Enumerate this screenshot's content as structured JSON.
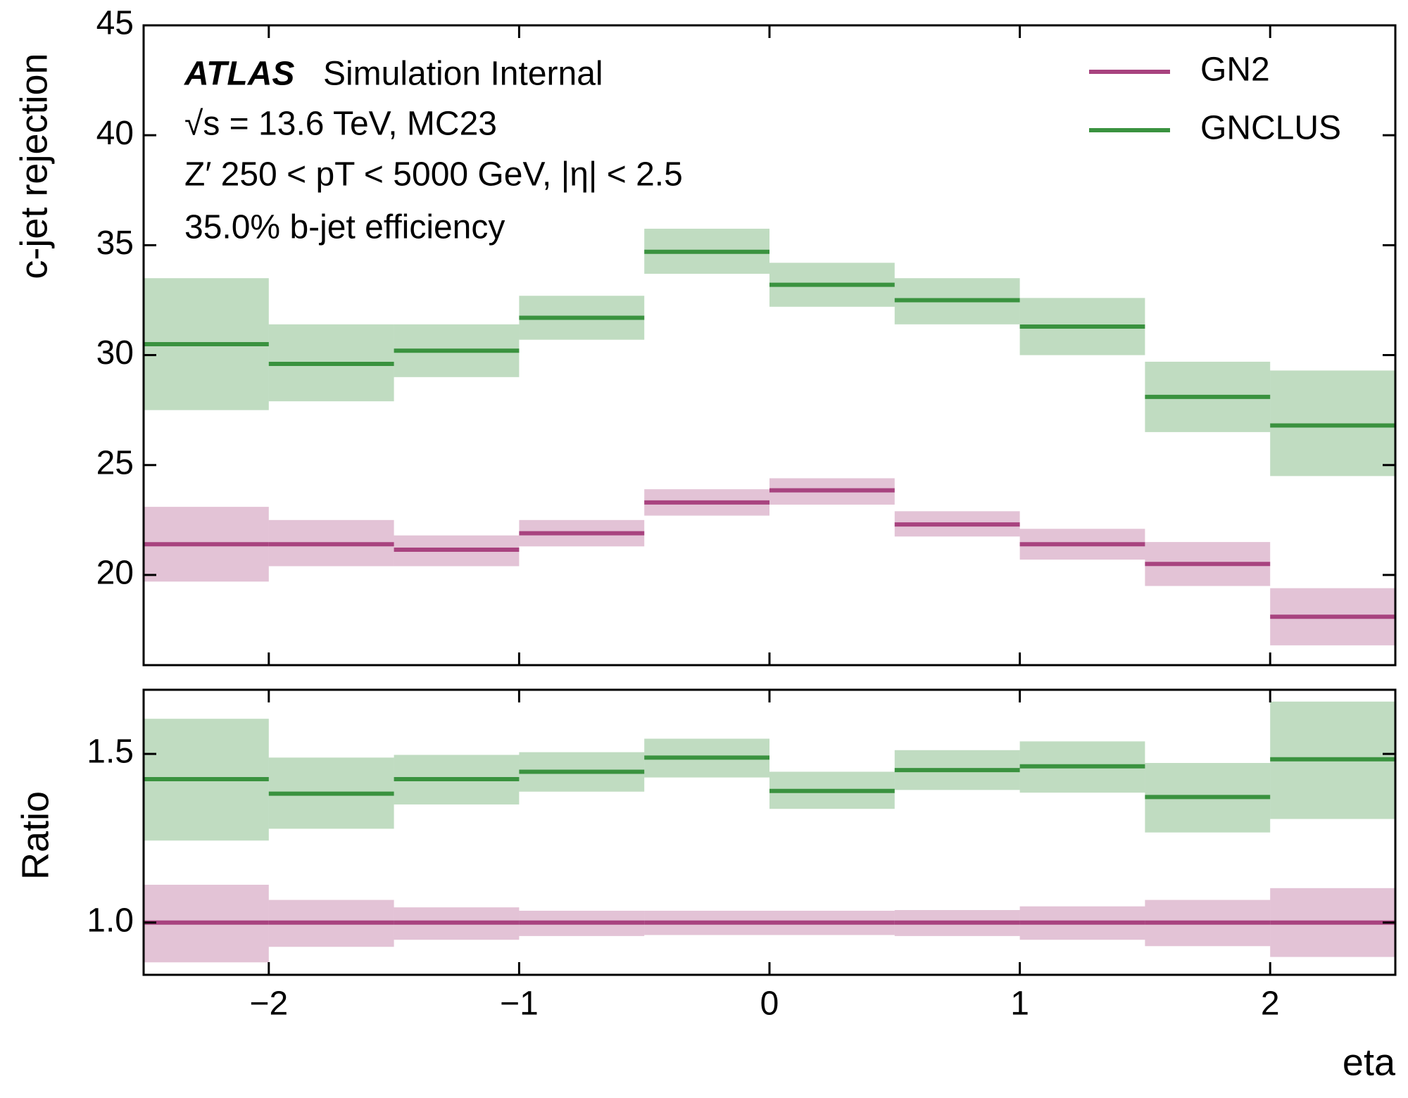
{
  "chart_data": [
    {
      "type": "histogram",
      "ylabel": "c-jet rejection",
      "annotations": [
        "ATLAS",
        "Simulation Internal",
        "√s = 13.6 TeV, MC23",
        "Z′ 250 < pT < 5000 GeV, |η| < 2.5",
        "35.0% b-jet efficiency"
      ],
      "legend": "upper right",
      "bins": [
        -2.5,
        -2,
        -1.5,
        -1,
        -0.5,
        0,
        0.5,
        1,
        1.5,
        2,
        2.5
      ],
      "xlim": [
        -2.5,
        2.5
      ],
      "xticks": [
        -2,
        -1,
        0,
        1,
        2
      ],
      "ylim": [
        15.9,
        45
      ],
      "yticks": [
        20,
        25,
        30,
        35,
        40,
        45
      ],
      "series": [
        {
          "name": "GN2",
          "color": "#a8437f",
          "values": [
            21.4,
            21.4,
            21.15,
            21.9,
            23.3,
            23.85,
            22.3,
            21.4,
            20.5,
            18.1
          ],
          "upper": [
            23.1,
            22.5,
            21.8,
            22.5,
            23.9,
            24.4,
            22.9,
            22.1,
            21.5,
            19.4
          ],
          "lower": [
            19.7,
            20.4,
            20.4,
            21.3,
            22.7,
            23.2,
            21.75,
            20.7,
            19.5,
            16.8
          ]
        },
        {
          "name": "GNCLUS",
          "color": "#3a923f",
          "values": [
            30.5,
            29.6,
            30.2,
            31.7,
            34.7,
            33.2,
            32.5,
            31.3,
            28.1,
            26.8
          ],
          "upper": [
            33.5,
            31.4,
            31.4,
            32.7,
            35.75,
            34.2,
            33.5,
            32.6,
            29.7,
            29.3
          ],
          "lower": [
            27.5,
            27.9,
            29.0,
            30.7,
            33.7,
            32.2,
            31.4,
            30.0,
            26.5,
            24.5
          ]
        }
      ]
    },
    {
      "type": "histogram",
      "ylabel": "Ratio",
      "xlabel": "eta",
      "bins": [
        -2.5,
        -2,
        -1.5,
        -1,
        -0.5,
        0,
        0.5,
        1,
        1.5,
        2,
        2.5
      ],
      "xlim": [
        -2.5,
        2.5
      ],
      "xticks": [
        {
          "value": -2,
          "label": "−2"
        },
        {
          "value": -1,
          "label": "−1"
        },
        0,
        1,
        2
      ],
      "ylim": [
        0.845,
        1.69
      ],
      "yticks": [
        {
          "value": 1,
          "label": "1.0"
        },
        1.5
      ],
      "series": [
        {
          "color": "#a8437f",
          "values": [
            1,
            1,
            1,
            1,
            1,
            1,
            1,
            1,
            1,
            1
          ],
          "upper": [
            1.112,
            1.067,
            1.045,
            1.035,
            1.035,
            1.035,
            1.037,
            1.048,
            1.067,
            1.102
          ],
          "lower": [
            0.882,
            0.928,
            0.949,
            0.96,
            0.963,
            0.963,
            0.96,
            0.949,
            0.93,
            0.898
          ]
        },
        {
          "color": "#3a923f",
          "values": [
            1.425,
            1.382,
            1.425,
            1.447,
            1.489,
            1.39,
            1.452,
            1.463,
            1.372,
            1.484
          ],
          "upper": [
            1.604,
            1.489,
            1.497,
            1.505,
            1.545,
            1.447,
            1.511,
            1.537,
            1.473,
            1.655
          ],
          "lower": [
            1.243,
            1.278,
            1.35,
            1.388,
            1.43,
            1.337,
            1.393,
            1.385,
            1.267,
            1.307
          ]
        }
      ]
    }
  ]
}
